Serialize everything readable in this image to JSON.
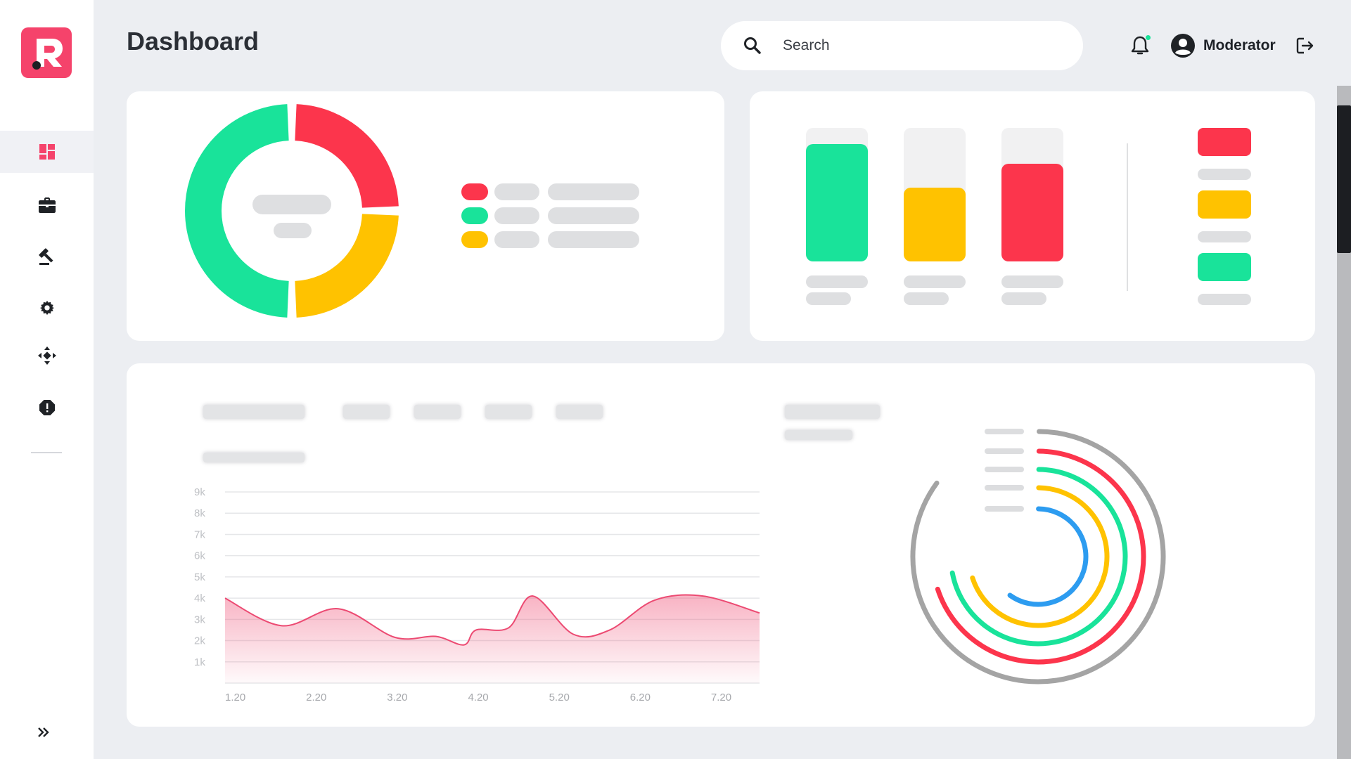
{
  "app": {
    "logo_letter": "R",
    "brand_color": "#f5436b"
  },
  "header": {
    "title": "Dashboard",
    "search": {
      "placeholder": "Search"
    },
    "user": {
      "name": "Moderator"
    }
  },
  "sidebar": {
    "items": [
      {
        "icon": "dashboard-icon",
        "active": true
      },
      {
        "icon": "briefcase-icon",
        "active": false
      },
      {
        "icon": "gavel-icon",
        "active": false
      },
      {
        "icon": "gear-icon",
        "active": false
      },
      {
        "icon": "move-icon",
        "active": false
      },
      {
        "icon": "alert-icon",
        "active": false
      }
    ],
    "expand_icon": "chevron-double-right-icon"
  },
  "colors": {
    "red": "#fc354c",
    "green": "#19e39a",
    "yellow": "#ffc200",
    "blue": "#2d9cf0",
    "gray": "#a4a4a4"
  },
  "donut_chart": {
    "segments": [
      {
        "color": "#19e39a",
        "value": 50
      },
      {
        "color": "#fc354c",
        "value": 25
      },
      {
        "color": "#ffc200",
        "value": 25
      }
    ]
  },
  "bar_chart": {
    "bars": [
      {
        "color": "#19e39a",
        "fill": 0.88
      },
      {
        "color": "#ffc200",
        "fill": 0.55
      },
      {
        "color": "#fc354c",
        "fill": 0.73
      }
    ]
  },
  "chart_data": [
    {
      "type": "area",
      "categories": [
        "1.20",
        "2.20",
        "3.20",
        "4.20",
        "5.20",
        "6.20",
        "7.20"
      ],
      "y_ticks": [
        "9k",
        "8k",
        "7k",
        "6k",
        "5k",
        "4k",
        "3k",
        "2k",
        "1k"
      ],
      "ylim": [
        0,
        9000
      ],
      "x": [
        1.0,
        1.7,
        2.4,
        3.1,
        3.6,
        3.95,
        4.1,
        4.5,
        4.8,
        5.3,
        5.75,
        6.3,
        6.9,
        7.6
      ],
      "values": [
        4000,
        2700,
        3500,
        2150,
        2200,
        1800,
        2500,
        2600,
        4100,
        2300,
        2500,
        3900,
        4100,
        3300
      ],
      "xlim": [
        1.0,
        7.6
      ],
      "color": "#f0557a",
      "grid": true
    },
    {
      "type": "radial",
      "series": [
        {
          "color": "#a4a4a4",
          "value": 0.85
        },
        {
          "color": "#fc354c",
          "value": 0.7
        },
        {
          "color": "#19e39a",
          "value": 0.72
        },
        {
          "color": "#ffc200",
          "value": 0.7
        },
        {
          "color": "#2d9cf0",
          "value": 0.6
        }
      ]
    }
  ]
}
